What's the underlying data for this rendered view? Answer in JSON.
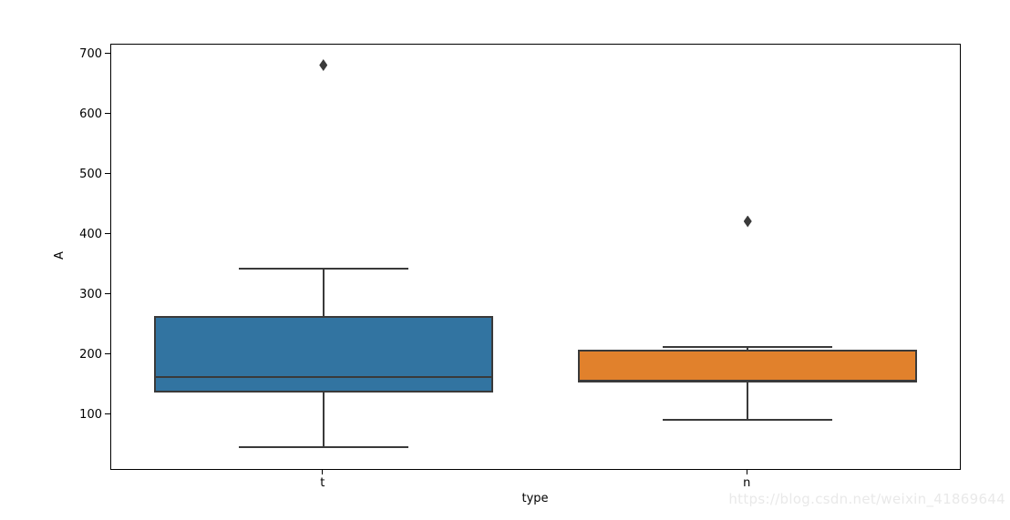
{
  "watermark": "https://blog.csdn.net/weixin_41869644",
  "chart_data": {
    "type": "box",
    "title": "",
    "xlabel": "type",
    "ylabel": "A",
    "categories": [
      "t",
      "n"
    ],
    "ylim": [
      10,
      716
    ],
    "yticks": [
      100,
      200,
      300,
      400,
      500,
      600,
      700
    ],
    "grid": false,
    "legend": "none",
    "edge_color": "#3a3a3a",
    "frame_color": "#000000",
    "series": [
      {
        "category": "t",
        "whisker_low": 46,
        "q1": 137,
        "median": 163,
        "q3": 264,
        "whisker_high": 343,
        "outliers": [
          682
        ],
        "fill": "#3274a1"
      },
      {
        "category": "n",
        "whisker_low": 92,
        "q1": 154,
        "median": 157,
        "q3": 208,
        "whisker_high": 213,
        "outliers": [
          422
        ],
        "fill": "#e1812c"
      }
    ]
  }
}
